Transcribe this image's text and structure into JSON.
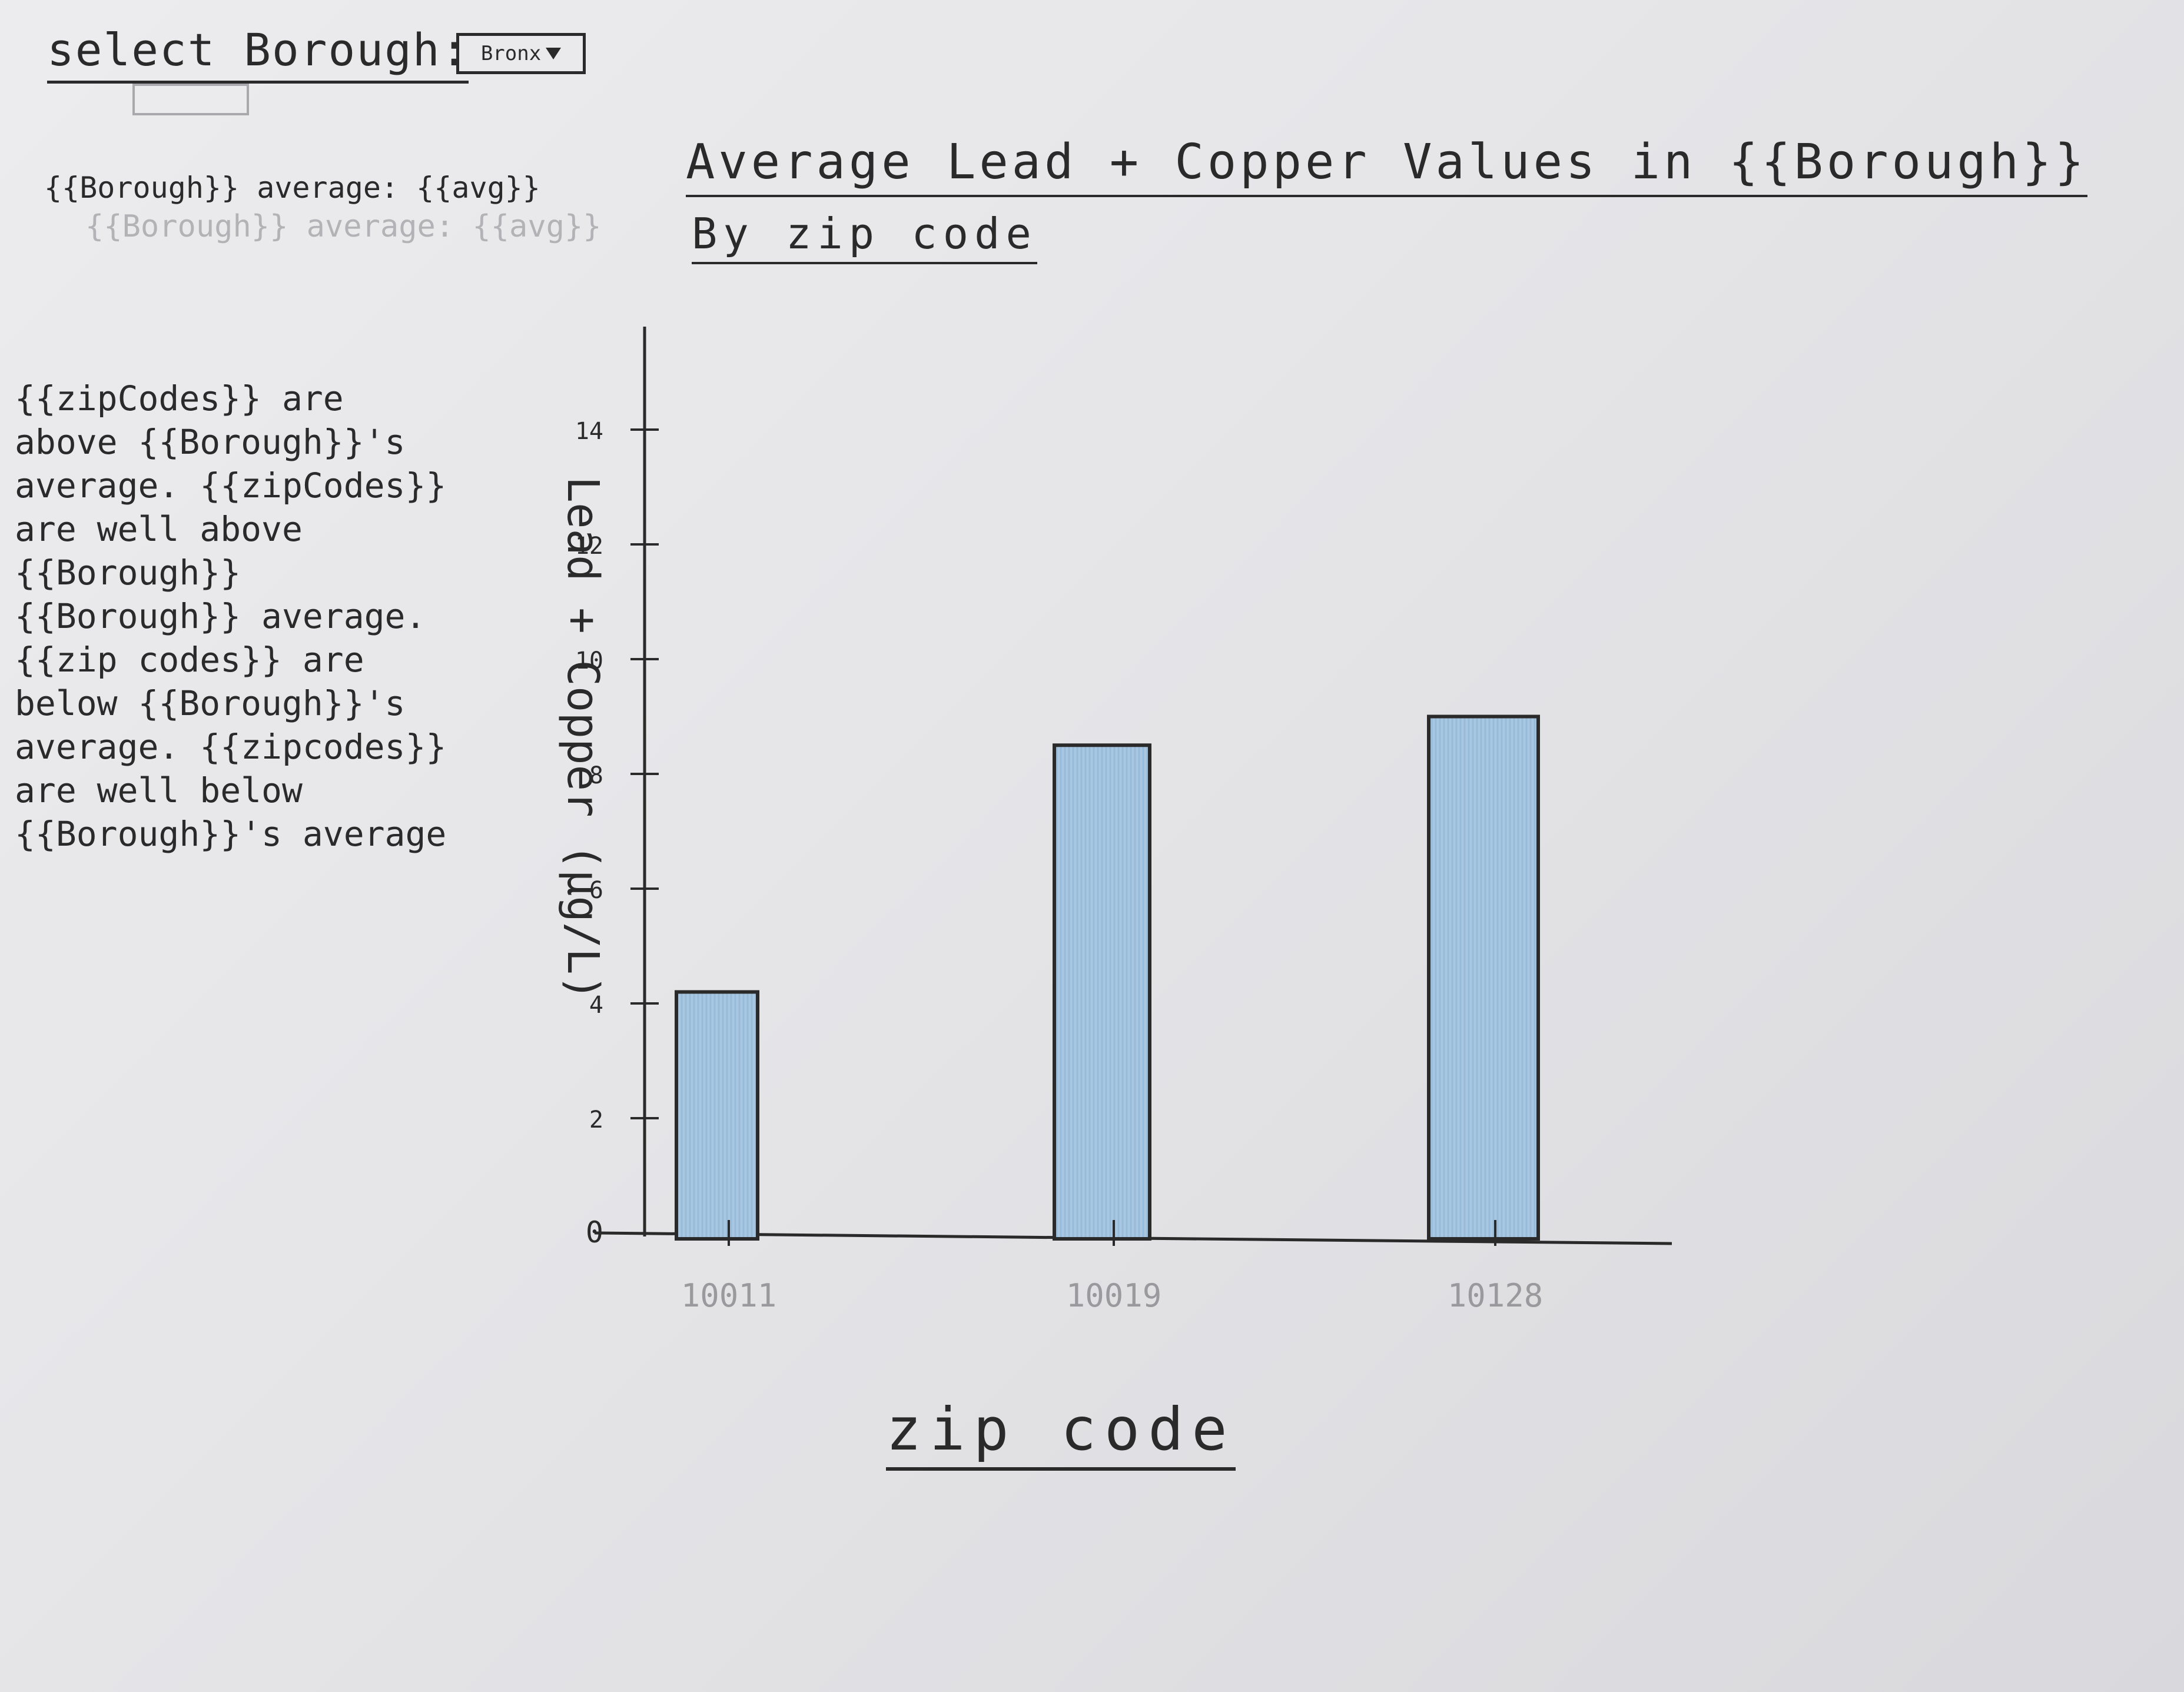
{
  "header": {
    "select_label": "select Borough:",
    "select_value": "Bronx"
  },
  "summary": {
    "average_line": "{{Borough}} average: {{avg}}",
    "ghost_line": "{{Borough}} average: {{avg}}"
  },
  "note": {
    "text": "{{zipCodes}} are\nabove {{Borough}}'s\naverage. {{zipCodes}}\nare well above {{Borough}}\n{{Borough}} average.\n{{zip codes}} are\nbelow {{Borough}}'s\naverage. {{zipcodes}}\nare well below\n{{Borough}}'s average"
  },
  "chart_data": {
    "type": "bar",
    "title": "Average Lead + Copper Values in {{Borough}}",
    "subtitle": "By zip code",
    "xlabel": "zip code",
    "ylabel": "Lead + Copper (µg/L)",
    "categories": [
      "10011",
      "10019",
      "10128"
    ],
    "values": [
      4.2,
      8.5,
      9.0
    ],
    "yticks": [
      0,
      2,
      4,
      6,
      8,
      10,
      12,
      14
    ],
    "ylim": [
      0,
      14
    ],
    "grid": false,
    "colors": {
      "bar_fill": "#a9c7e0",
      "bar_stroke": "#2a2a2a",
      "axis": "#2a2a2a",
      "tick_label": "#2a2a2a",
      "category_label": "#9a9a9e"
    }
  }
}
